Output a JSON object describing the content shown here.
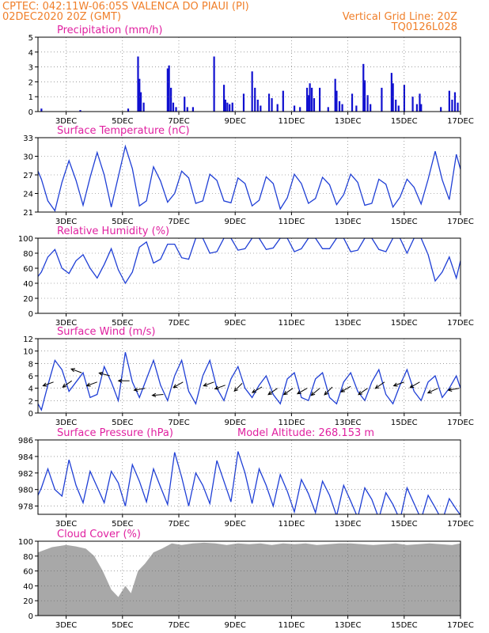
{
  "header": {
    "line1": "CPTEC:   042:11W-06:05S   VALENCA DO PIAUI (PI)",
    "line2_left": "02DEC2020 20Z (GMT)",
    "line2_right": "Vertical Grid Line: 20Z",
    "line3_right": "TQ0126L028"
  },
  "x_axis": {
    "tick_labels": [
      "3DEC",
      "5DEC",
      "7DEC",
      "9DEC",
      "11DEC",
      "13DEC",
      "15DEC",
      "17DEC"
    ],
    "tick_days": [
      1,
      3,
      5,
      7,
      9,
      11,
      13,
      15
    ],
    "range_days": [
      0,
      15
    ],
    "unit": "days from 02DEC2020 20Z"
  },
  "colors": {
    "header": "#f07f2a",
    "panel_title": "#e020a0",
    "line": "#1f3fd6",
    "bar": "#1010d0",
    "cloud": "#a8a8a8",
    "grid": "#666666"
  },
  "chart_data": [
    {
      "type": "bar",
      "title": "Precipitation (mm/h)",
      "ylim": [
        0,
        5
      ],
      "yticks": [
        0,
        1,
        2,
        3,
        4,
        5
      ],
      "x": [
        0.12,
        1.5,
        3.2,
        3.55,
        3.6,
        3.65,
        3.75,
        4.6,
        4.65,
        4.72,
        4.8,
        4.9,
        5.2,
        5.3,
        5.5,
        6.25,
        6.6,
        6.65,
        6.72,
        6.8,
        6.9,
        7.3,
        7.6,
        7.7,
        7.8,
        7.9,
        8.2,
        8.3,
        8.5,
        8.7,
        9.1,
        9.3,
        9.55,
        9.6,
        9.65,
        9.72,
        9.8,
        10.0,
        10.3,
        10.55,
        10.6,
        10.7,
        10.8,
        11.15,
        11.3,
        11.55,
        11.6,
        11.7,
        11.8,
        12.2,
        12.55,
        12.6,
        12.7,
        12.8,
        13.0,
        13.3,
        13.45,
        13.55,
        13.6,
        14.3,
        14.6,
        14.7,
        14.8,
        14.9
      ],
      "values": [
        0.2,
        0.1,
        0.2,
        3.7,
        2.2,
        1.3,
        0.6,
        2.9,
        3.1,
        1.6,
        0.6,
        0.3,
        1.0,
        0.3,
        0.3,
        3.7,
        1.8,
        0.8,
        0.6,
        0.5,
        0.6,
        1.2,
        2.7,
        1.6,
        0.8,
        0.4,
        1.2,
        0.9,
        0.5,
        1.4,
        0.4,
        0.3,
        1.6,
        1.1,
        1.9,
        1.6,
        0.9,
        1.6,
        0.3,
        2.2,
        1.4,
        0.7,
        0.5,
        1.2,
        0.4,
        3.2,
        2.1,
        1.1,
        0.5,
        1.6,
        2.6,
        1.9,
        0.8,
        0.4,
        1.8,
        1.0,
        0.5,
        1.2,
        0.5,
        0.3,
        1.4,
        0.8,
        1.3,
        0.6
      ]
    },
    {
      "type": "line",
      "title": "Surface Temperature (nC)",
      "ylim": [
        21,
        33
      ],
      "yticks": [
        21,
        24,
        27,
        30,
        33
      ],
      "x": [
        0,
        0.12,
        0.35,
        0.6,
        0.85,
        1.1,
        1.35,
        1.6,
        1.85,
        2.1,
        2.35,
        2.6,
        2.85,
        3.1,
        3.35,
        3.6,
        3.85,
        4.1,
        4.35,
        4.6,
        4.85,
        5.1,
        5.35,
        5.6,
        5.85,
        6.1,
        6.35,
        6.6,
        6.85,
        7.1,
        7.35,
        7.6,
        7.85,
        8.1,
        8.35,
        8.6,
        8.85,
        9.1,
        9.35,
        9.6,
        9.85,
        10.1,
        10.35,
        10.6,
        10.85,
        11.1,
        11.35,
        11.6,
        11.85,
        12.1,
        12.35,
        12.6,
        12.85,
        13.1,
        13.35,
        13.6,
        13.85,
        14.1,
        14.35,
        14.6,
        14.85,
        15.0
      ],
      "values": [
        27.6,
        26.3,
        22.8,
        21.2,
        25.8,
        29.3,
        26.1,
        22.1,
        26.6,
        30.6,
        27.0,
        21.8,
        26.7,
        31.6,
        28.0,
        22.0,
        22.8,
        28.3,
        26.0,
        22.6,
        24.0,
        27.6,
        26.5,
        22.4,
        22.8,
        27.1,
        26.1,
        22.8,
        22.5,
        26.5,
        25.6,
        22.0,
        22.9,
        26.7,
        25.6,
        21.5,
        23.3,
        27.1,
        25.6,
        22.4,
        23.2,
        26.6,
        25.4,
        22.2,
        23.8,
        27.1,
        25.8,
        22.1,
        22.4,
        26.3,
        25.5,
        21.8,
        23.4,
        26.3,
        25.0,
        22.3,
        26.3,
        30.8,
        26.2,
        23.0,
        30.3,
        27.9
      ]
    },
    {
      "type": "line",
      "title": "Relative Humidity (%)",
      "ylim": [
        0,
        100
      ],
      "yticks": [
        0,
        20,
        40,
        60,
        80,
        100
      ],
      "x": [
        0,
        0.12,
        0.35,
        0.6,
        0.85,
        1.1,
        1.35,
        1.6,
        1.85,
        2.1,
        2.35,
        2.6,
        2.85,
        3.1,
        3.35,
        3.6,
        3.85,
        4.1,
        4.35,
        4.6,
        4.85,
        5.1,
        5.35,
        5.6,
        5.85,
        6.1,
        6.35,
        6.6,
        6.85,
        7.1,
        7.35,
        7.6,
        7.85,
        8.1,
        8.35,
        8.6,
        8.85,
        9.1,
        9.35,
        9.6,
        9.85,
        10.1,
        10.35,
        10.6,
        10.85,
        11.1,
        11.35,
        11.6,
        11.85,
        12.1,
        12.35,
        12.6,
        12.85,
        13.1,
        13.35,
        13.6,
        13.85,
        14.1,
        14.35,
        14.6,
        14.85,
        15.0
      ],
      "values": [
        49,
        55,
        75,
        85,
        60,
        53,
        70,
        78,
        60,
        47,
        65,
        86,
        58,
        40,
        55,
        88,
        95,
        67,
        72,
        92,
        92,
        74,
        72,
        100,
        100,
        80,
        82,
        100,
        100,
        84,
        86,
        100,
        100,
        85,
        87,
        100,
        100,
        82,
        86,
        100,
        100,
        86,
        86,
        100,
        100,
        82,
        84,
        100,
        100,
        85,
        82,
        100,
        100,
        80,
        100,
        100,
        78,
        43,
        55,
        75,
        47,
        70
      ]
    },
    {
      "type": "line",
      "title": "Surface Wind (m/s)",
      "ylim": [
        0,
        12
      ],
      "yticks": [
        0,
        2,
        4,
        6,
        8,
        10,
        12
      ],
      "x": [
        0,
        0.12,
        0.35,
        0.6,
        0.85,
        1.1,
        1.35,
        1.6,
        1.85,
        2.1,
        2.35,
        2.6,
        2.85,
        3.1,
        3.35,
        3.6,
        3.85,
        4.1,
        4.35,
        4.6,
        4.85,
        5.1,
        5.35,
        5.6,
        5.85,
        6.1,
        6.35,
        6.6,
        6.85,
        7.1,
        7.35,
        7.6,
        7.85,
        8.1,
        8.35,
        8.6,
        8.85,
        9.1,
        9.35,
        9.6,
        9.85,
        10.1,
        10.35,
        10.6,
        10.85,
        11.1,
        11.35,
        11.6,
        11.85,
        12.1,
        12.35,
        12.6,
        12.85,
        13.1,
        13.35,
        13.6,
        13.85,
        14.1,
        14.35,
        14.6,
        14.85,
        15.0
      ],
      "values": [
        1.5,
        0.5,
        4.5,
        8.5,
        7.0,
        3.5,
        5.0,
        6.5,
        2.5,
        3.0,
        7.5,
        5.0,
        2.0,
        9.8,
        5.0,
        2.5,
        5.5,
        8.5,
        4.5,
        2.0,
        6.0,
        8.5,
        3.5,
        1.5,
        6.0,
        8.5,
        4.0,
        2.0,
        5.5,
        7.5,
        4.0,
        2.5,
        4.5,
        6.0,
        3.0,
        1.5,
        5.5,
        6.5,
        2.5,
        2.0,
        5.5,
        6.5,
        2.5,
        1.5,
        5.0,
        6.5,
        3.5,
        2.0,
        5.0,
        7.0,
        3.0,
        1.5,
        4.5,
        7.0,
        3.5,
        2.0,
        5.0,
        6.0,
        2.5,
        4.0,
        6.0,
        4.0
      ],
      "arrows": [
        {
          "x": 0.55,
          "speed": 5.0,
          "dir_deg": 250
        },
        {
          "x": 1.2,
          "speed": 5.2,
          "dir_deg": 235
        },
        {
          "x": 1.55,
          "speed": 6.5,
          "dir_deg": 290
        },
        {
          "x": 2.1,
          "speed": 5.0,
          "dir_deg": 250
        },
        {
          "x": 2.55,
          "speed": 6.0,
          "dir_deg": 285
        },
        {
          "x": 3.25,
          "speed": 5.2,
          "dir_deg": 270
        },
        {
          "x": 3.8,
          "speed": 4.0,
          "dir_deg": 260
        },
        {
          "x": 4.45,
          "speed": 3.0,
          "dir_deg": 265
        },
        {
          "x": 5.15,
          "speed": 5.0,
          "dir_deg": 240
        },
        {
          "x": 6.25,
          "speed": 5.0,
          "dir_deg": 250
        },
        {
          "x": 6.65,
          "speed": 4.5,
          "dir_deg": 250
        },
        {
          "x": 7.25,
          "speed": 4.8,
          "dir_deg": 225
        },
        {
          "x": 7.95,
          "speed": 4.2,
          "dir_deg": 240
        },
        {
          "x": 8.5,
          "speed": 4.0,
          "dir_deg": 235
        },
        {
          "x": 9.05,
          "speed": 4.0,
          "dir_deg": 235
        },
        {
          "x": 9.55,
          "speed": 4.0,
          "dir_deg": 240
        },
        {
          "x": 10.0,
          "speed": 4.0,
          "dir_deg": 230
        },
        {
          "x": 10.45,
          "speed": 4.2,
          "dir_deg": 225
        },
        {
          "x": 11.1,
          "speed": 4.3,
          "dir_deg": 240
        },
        {
          "x": 11.7,
          "speed": 4.0,
          "dir_deg": 235
        },
        {
          "x": 12.3,
          "speed": 5.0,
          "dir_deg": 235
        },
        {
          "x": 13.0,
          "speed": 5.0,
          "dir_deg": 250
        },
        {
          "x": 13.55,
          "speed": 5.0,
          "dir_deg": 240
        },
        {
          "x": 14.2,
          "speed": 4.0,
          "dir_deg": 245
        },
        {
          "x": 14.95,
          "speed": 4.0,
          "dir_deg": 260
        }
      ]
    },
    {
      "type": "line",
      "title": "Surface Pressure (hPa)",
      "annotation": "Model Altitude: 268.153 m",
      "ylim": [
        977,
        986
      ],
      "yticks": [
        978,
        980,
        982,
        984,
        986
      ],
      "x": [
        0,
        0.12,
        0.35,
        0.6,
        0.85,
        1.1,
        1.35,
        1.6,
        1.85,
        2.1,
        2.35,
        2.6,
        2.85,
        3.1,
        3.35,
        3.6,
        3.85,
        4.1,
        4.35,
        4.6,
        4.85,
        5.1,
        5.35,
        5.6,
        5.85,
        6.1,
        6.35,
        6.6,
        6.85,
        7.1,
        7.35,
        7.6,
        7.85,
        8.1,
        8.35,
        8.6,
        8.85,
        9.1,
        9.35,
        9.6,
        9.85,
        10.1,
        10.35,
        10.6,
        10.85,
        11.1,
        11.35,
        11.6,
        11.85,
        12.1,
        12.35,
        12.6,
        12.85,
        13.1,
        13.35,
        13.6,
        13.85,
        14.1,
        14.35,
        14.6,
        14.85,
        15.0
      ],
      "values": [
        979.3,
        980.2,
        982.5,
        980.0,
        979.2,
        983.6,
        980.5,
        978.4,
        982.2,
        980.3,
        978.4,
        982.2,
        980.8,
        978.0,
        983.0,
        981.0,
        978.5,
        982.5,
        980.3,
        978.2,
        984.5,
        981.5,
        978.0,
        982.0,
        980.5,
        978.3,
        983.5,
        981.0,
        978.5,
        984.6,
        982.0,
        978.3,
        982.5,
        980.5,
        978.0,
        981.8,
        979.8,
        977.3,
        981.2,
        979.5,
        977.2,
        981.0,
        979.3,
        976.8,
        980.5,
        978.6,
        976.6,
        980.2,
        978.8,
        976.5,
        979.6,
        978.2,
        976.3,
        980.2,
        978.3,
        976.4,
        979.3,
        977.8,
        976.2,
        978.9,
        977.6,
        976.9
      ]
    },
    {
      "type": "bar",
      "title": "Cloud Cover (%)",
      "ylim": [
        0,
        100
      ],
      "yticks": [
        0,
        20,
        40,
        60,
        80,
        100
      ],
      "x": [
        0,
        0.5,
        1.0,
        1.35,
        1.7,
        2.0,
        2.3,
        2.6,
        2.85,
        3.1,
        3.3,
        3.55,
        3.8,
        4.1,
        4.4,
        4.75,
        5.1,
        5.5,
        5.9,
        6.3,
        6.7,
        7.1,
        7.5,
        7.9,
        8.3,
        8.7,
        9.1,
        9.5,
        9.9,
        10.3,
        10.7,
        11.1,
        11.5,
        11.9,
        12.3,
        12.7,
        13.1,
        13.5,
        13.9,
        14.3,
        14.7,
        15.0
      ],
      "values": [
        85,
        92,
        95,
        93,
        90,
        80,
        60,
        35,
        25,
        40,
        30,
        60,
        70,
        85,
        90,
        97,
        95,
        97,
        98,
        97,
        95,
        97,
        96,
        97,
        95,
        97,
        96,
        97,
        95,
        96,
        97,
        97,
        96,
        95,
        96,
        97,
        95,
        96,
        97,
        96,
        95,
        97
      ]
    }
  ]
}
